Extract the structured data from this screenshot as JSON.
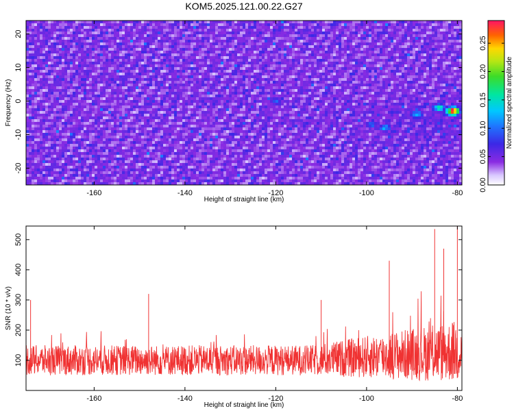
{
  "title": "KOM5.2025.121.00.22.G27",
  "chart_data": [
    {
      "type": "heatmap",
      "xlabel": "Height of straight line (km)",
      "ylabel": "Frequency (Hz)",
      "xlim": [
        -175,
        -79
      ],
      "ylim": [
        -25,
        24
      ],
      "x_ticks": [
        -160,
        -140,
        -120,
        -100,
        -80
      ],
      "y_ticks": [
        -20,
        -10,
        0,
        10,
        20
      ],
      "colorbar": {
        "label": "Normalized spectral amplitude",
        "range": [
          0.0,
          0.29
        ],
        "ticks": [
          0.0,
          0.05,
          0.1,
          0.15,
          0.2,
          0.25
        ],
        "tick_labels": [
          "0.00",
          "0.05",
          "0.10",
          "0.15",
          "0.20",
          "0.25"
        ]
      },
      "peak": {
        "x": -81,
        "y": -3,
        "value": 0.28
      },
      "hot_regions": [
        {
          "x": -84,
          "y": -2,
          "value": 0.16
        },
        {
          "x": -89,
          "y": -4,
          "value": 0.13
        },
        {
          "x": -96,
          "y": -8,
          "value": 0.12
        },
        {
          "x": -99,
          "y": -7,
          "value": 0.1
        },
        {
          "x": -120,
          "y": 0,
          "value": 0.09
        }
      ]
    },
    {
      "type": "line",
      "xlabel": "Height of straight line (km)",
      "ylabel": "SNR (10 * v/v)",
      "xlim": [
        -175,
        -79
      ],
      "ylim": [
        0,
        545
      ],
      "x_ticks": [
        -160,
        -140,
        -120,
        -100,
        -80
      ],
      "y_ticks": [
        100,
        200,
        300,
        400,
        500
      ],
      "color": "#f03232",
      "baseline": 95,
      "noise_amplitude": 50,
      "peaks": [
        {
          "x": -174,
          "y": 300
        },
        {
          "x": -148,
          "y": 320
        },
        {
          "x": -110,
          "y": 300
        },
        {
          "x": -95,
          "y": 430
        },
        {
          "x": -85,
          "y": 535
        },
        {
          "x": -83,
          "y": 470
        },
        {
          "x": -80,
          "y": 545
        },
        {
          "x": -79,
          "y": 320
        }
      ]
    }
  ]
}
